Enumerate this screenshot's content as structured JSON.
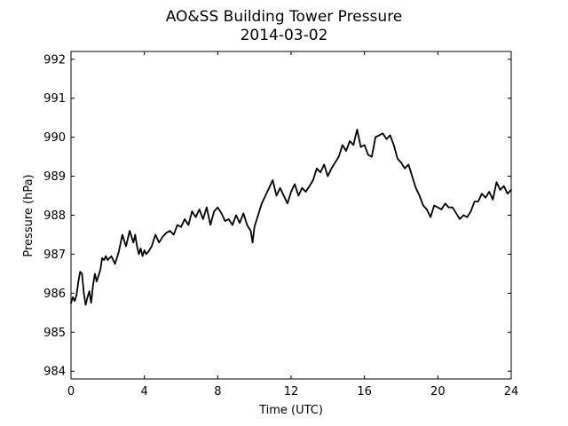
{
  "chart_data": {
    "type": "line",
    "title": "AO&SS Building Tower Pressure",
    "subtitle": "2014-03-02",
    "xlabel": "Time (UTC)",
    "ylabel": "Pressure (hPa)",
    "xlim": [
      0,
      24
    ],
    "ylim": [
      983.8,
      992.2
    ],
    "x_ticks": [
      0,
      4,
      8,
      12,
      16,
      20,
      24
    ],
    "y_ticks": [
      984,
      985,
      986,
      987,
      988,
      989,
      990,
      991,
      992
    ],
    "grid": false,
    "legend": "none",
    "series": [
      {
        "color": "#000000",
        "x": [
          0.0,
          0.1,
          0.2,
          0.3,
          0.4,
          0.5,
          0.6,
          0.7,
          0.8,
          0.9,
          1.0,
          1.1,
          1.2,
          1.3,
          1.4,
          1.5,
          1.6,
          1.7,
          1.8,
          1.9,
          2.0,
          2.2,
          2.4,
          2.6,
          2.8,
          3.0,
          3.2,
          3.4,
          3.5,
          3.6,
          3.7,
          3.8,
          3.9,
          4.0,
          4.1,
          4.2,
          4.4,
          4.6,
          4.8,
          5.0,
          5.2,
          5.4,
          5.6,
          5.8,
          6.0,
          6.2,
          6.4,
          6.6,
          6.8,
          7.0,
          7.2,
          7.4,
          7.6,
          7.8,
          8.0,
          8.2,
          8.4,
          8.6,
          8.8,
          9.0,
          9.2,
          9.4,
          9.6,
          9.8,
          9.9,
          10.0,
          10.2,
          10.4,
          10.6,
          10.8,
          11.0,
          11.2,
          11.4,
          11.6,
          11.8,
          12.0,
          12.2,
          12.4,
          12.6,
          12.8,
          13.0,
          13.2,
          13.4,
          13.6,
          13.8,
          14.0,
          14.2,
          14.4,
          14.6,
          14.8,
          15.0,
          15.2,
          15.4,
          15.5,
          15.6,
          15.8,
          16.0,
          16.2,
          16.4,
          16.6,
          16.8,
          17.0,
          17.2,
          17.4,
          17.6,
          17.8,
          18.0,
          18.2,
          18.4,
          18.6,
          18.8,
          19.0,
          19.2,
          19.4,
          19.6,
          19.8,
          20.0,
          20.2,
          20.4,
          20.6,
          20.8,
          21.0,
          21.2,
          21.4,
          21.6,
          21.8,
          22.0,
          22.2,
          22.4,
          22.6,
          22.8,
          23.0,
          23.2,
          23.4,
          23.6,
          23.8,
          24.0
        ],
        "y": [
          985.75,
          985.9,
          985.8,
          985.95,
          986.3,
          986.55,
          986.5,
          986.0,
          985.7,
          985.9,
          986.05,
          985.75,
          986.2,
          986.5,
          986.3,
          986.45,
          986.6,
          986.9,
          986.85,
          986.95,
          986.85,
          986.95,
          986.75,
          987.05,
          987.5,
          987.2,
          987.6,
          987.3,
          987.5,
          987.2,
          987.0,
          987.15,
          986.95,
          987.1,
          987.0,
          987.05,
          987.2,
          987.5,
          987.3,
          987.45,
          987.55,
          987.6,
          987.5,
          987.75,
          987.7,
          987.9,
          987.75,
          988.1,
          987.95,
          988.15,
          987.9,
          988.2,
          987.75,
          988.1,
          988.2,
          988.05,
          987.85,
          987.9,
          987.75,
          988.0,
          987.8,
          988.05,
          987.75,
          987.6,
          987.3,
          987.7,
          988.0,
          988.3,
          988.5,
          988.7,
          988.9,
          988.5,
          988.7,
          988.5,
          988.3,
          988.6,
          988.8,
          988.5,
          988.7,
          988.6,
          988.75,
          988.9,
          989.2,
          989.1,
          989.3,
          989.0,
          989.2,
          989.35,
          989.5,
          989.8,
          989.65,
          989.9,
          989.8,
          990.0,
          990.2,
          989.75,
          989.8,
          989.55,
          989.5,
          990.0,
          990.05,
          990.1,
          989.95,
          990.05,
          989.8,
          989.45,
          989.35,
          989.2,
          989.3,
          989.0,
          988.7,
          988.5,
          988.25,
          988.15,
          987.95,
          988.25,
          988.2,
          988.15,
          988.3,
          988.2,
          988.2,
          988.05,
          987.9,
          988.0,
          987.95,
          988.1,
          988.35,
          988.35,
          988.55,
          988.45,
          988.6,
          988.4,
          988.85,
          988.65,
          988.75,
          988.55,
          988.65
        ]
      }
    ]
  }
}
